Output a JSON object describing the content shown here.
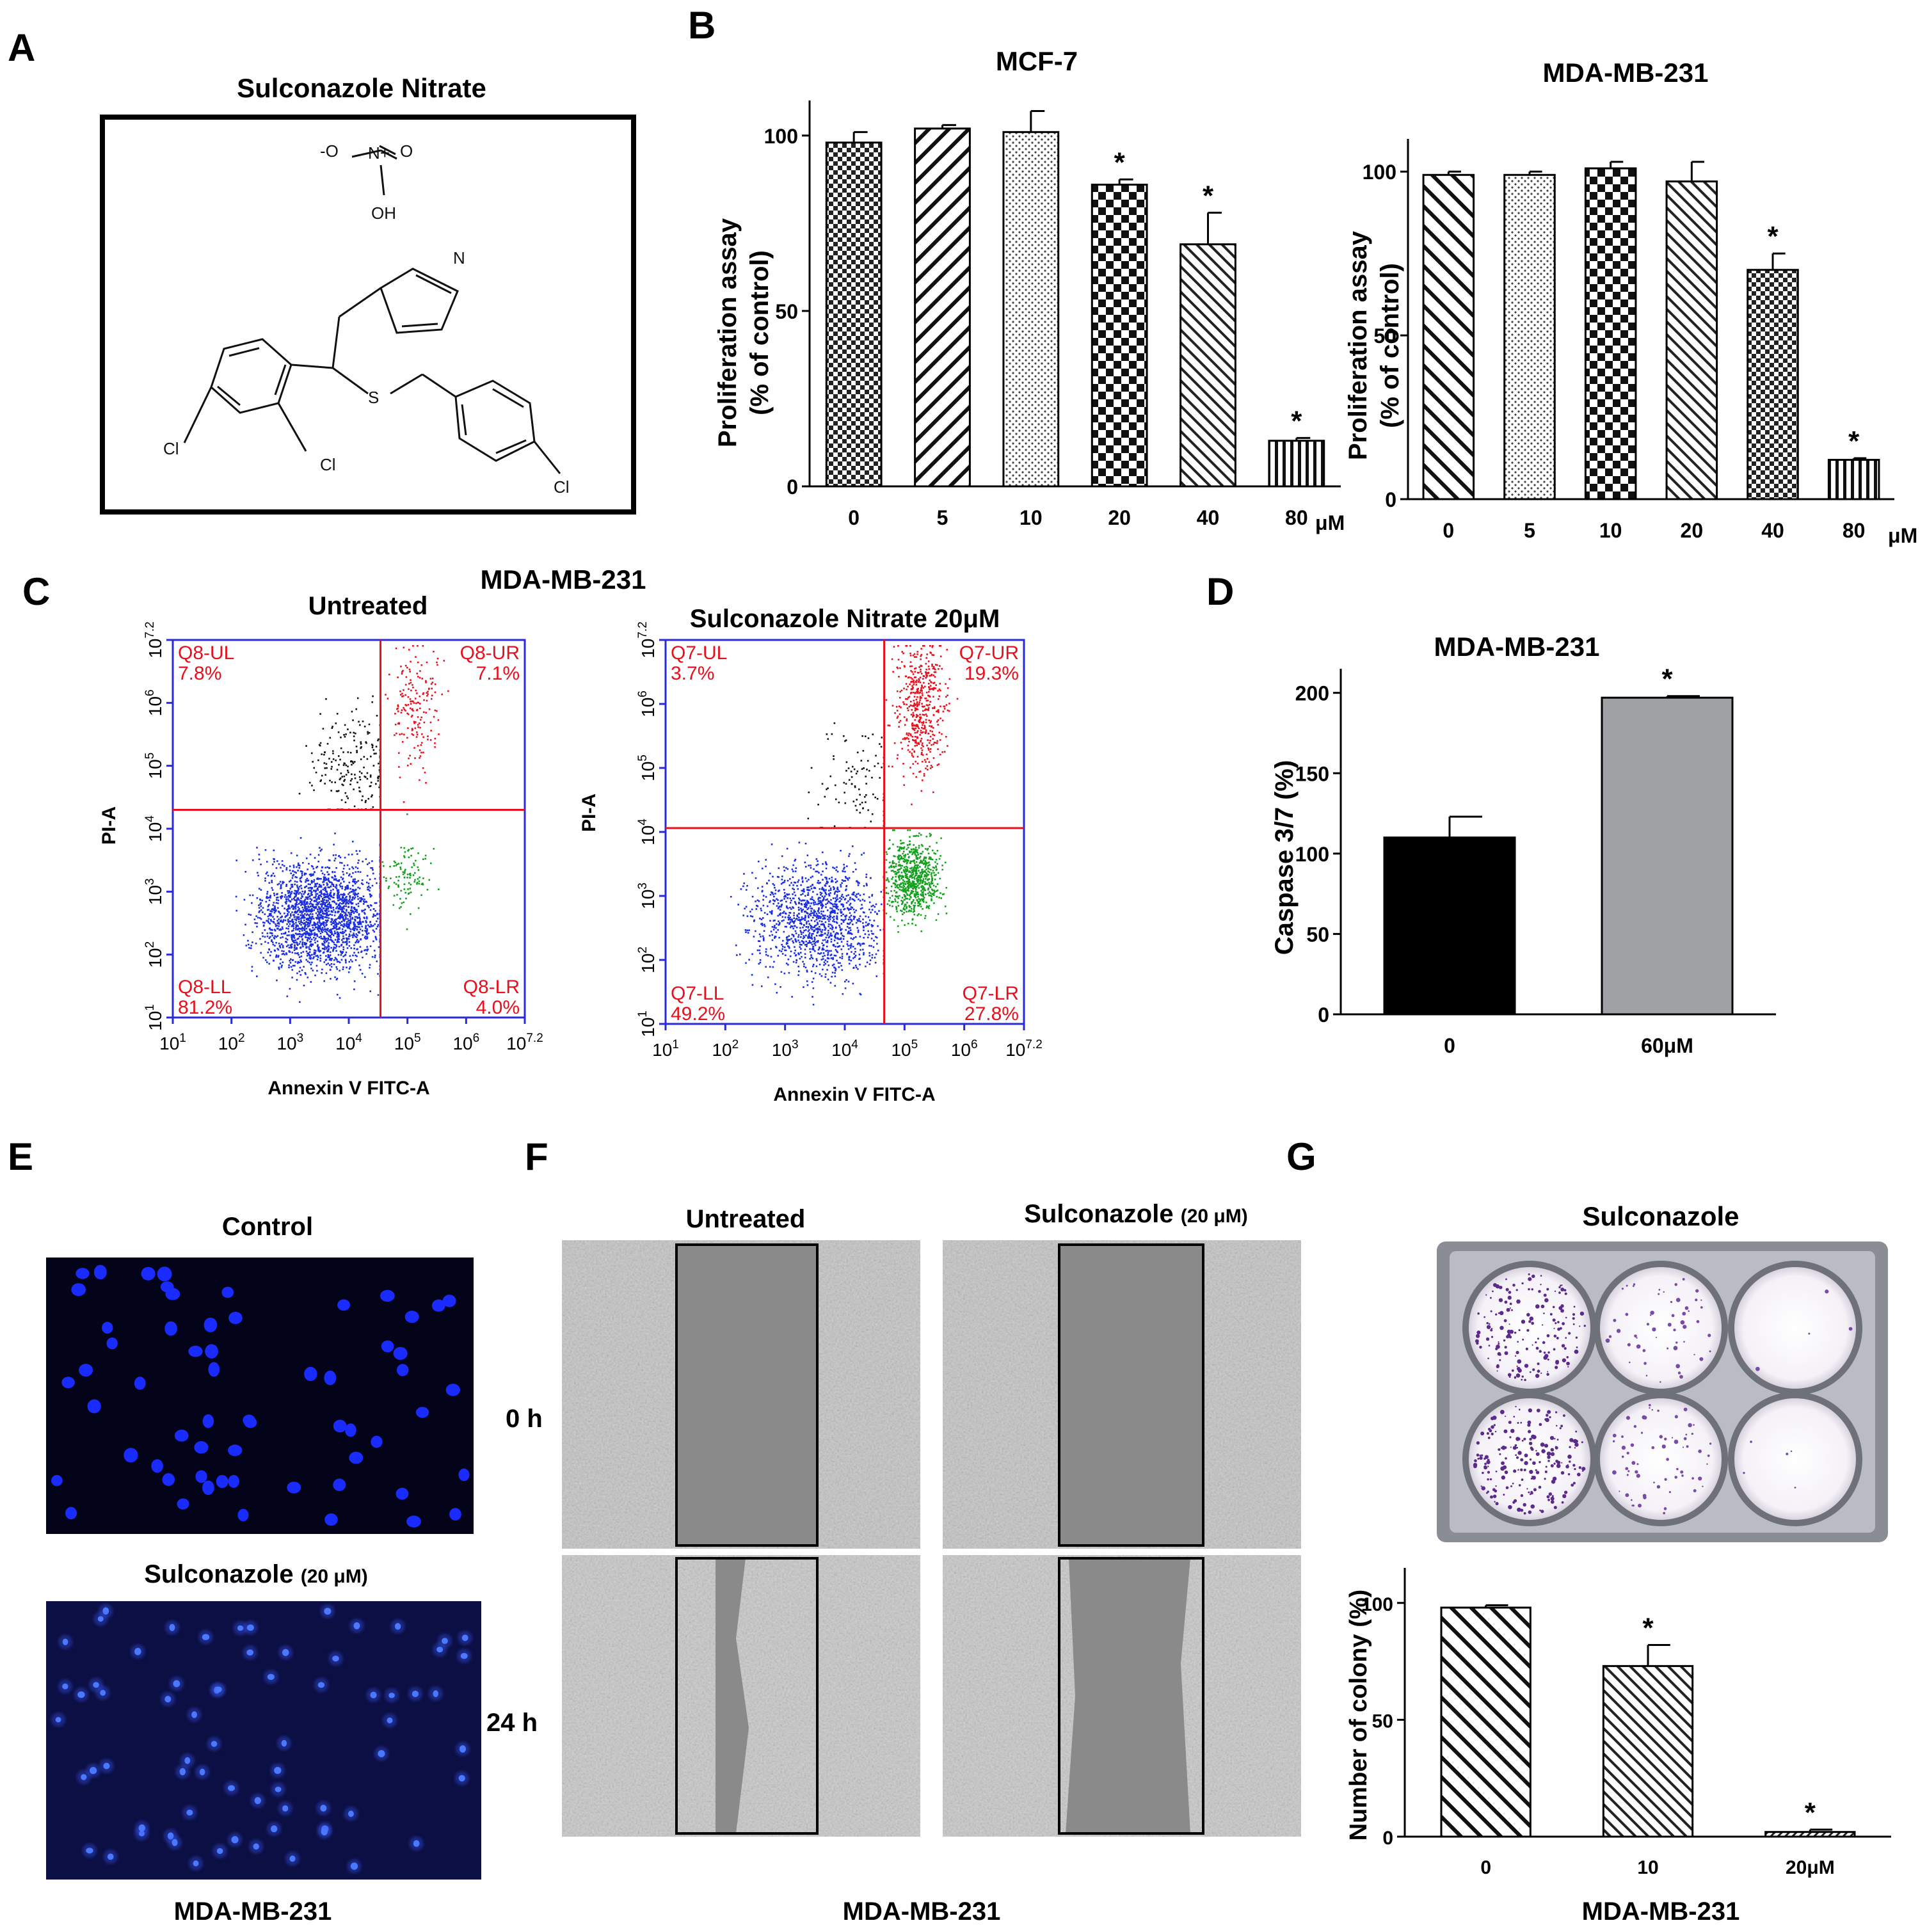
{
  "panel_labels": {
    "A": "A",
    "B": "B",
    "C": "C",
    "D": "D",
    "E": "E",
    "F": "F",
    "G": "G"
  },
  "panel_a": {
    "title": "Sulconazole Nitrate",
    "atoms": {
      "o_minus": "-O",
      "n_plus": "N+",
      "o": "O",
      "oh": "OH",
      "n": "N",
      "s": "S",
      "cl1": "Cl",
      "cl2": "Cl",
      "cl3": "Cl"
    }
  },
  "panel_b": {
    "unit": "μM"
  },
  "panel_c": {
    "cell_line": "MDA-MB-231",
    "x_ticks": [
      "10^1",
      "10^2",
      "10^3",
      "10^4",
      "10^5",
      "10^6",
      "10^7.2"
    ],
    "y_ticks": [
      "10^1",
      "10^2",
      "10^3",
      "10^4",
      "10^5",
      "10^6",
      "10^7.2"
    ],
    "untreated": {
      "title": "Untreated",
      "xlabel": "Annexin V FITC-A",
      "ylabel": "PI-A",
      "ul_name": "Q8-UL",
      "ul_value": "7.8%",
      "ur_name": "Q8-UR",
      "ur_value": "7.1%",
      "ll_name": "Q8-LL",
      "ll_value": "81.2%",
      "lr_name": "Q8-LR",
      "lr_value": "4.0%",
      "ul": 7.8,
      "ur": 7.1,
      "ll": 81.2,
      "lr": 4.0
    },
    "treated": {
      "title": "Sulconazole Nitrate 20μM",
      "xlabel": "Annexin V FITC-A",
      "ylabel": "PI-A",
      "ul_name": "Q7-UL",
      "ul_value": "3.7%",
      "ur_name": "Q7-UR",
      "ur_value": "19.3%",
      "ll_name": "Q7-LL",
      "ll_value": "49.2%",
      "lr_name": "Q7-LR",
      "lr_value": "27.8%",
      "ul": 3.7,
      "ur": 19.3,
      "ll": 49.2,
      "lr": 27.8
    },
    "colors": {
      "ul": "#111111",
      "ur": "#e8101c",
      "ll": "#1a2ee0",
      "lr": "#14a01e",
      "axis": "#2a2ad8",
      "gate": "#e8101c"
    }
  },
  "panel_e": {
    "control_label": "Control",
    "treated_label": "Sulconazole",
    "treated_dose": "(20 μM)",
    "cell_line": "MDA-MB-231"
  },
  "panel_f": {
    "untreated_label": "Untreated",
    "treated_label": "Sulconazole",
    "treated_dose": "(20 μM)",
    "time_0": "0 h",
    "time_24": "24 h",
    "cell_line": "MDA-MB-231"
  },
  "panel_g": {
    "title": "Sulconazole",
    "cell_line": "MDA-MB-231"
  },
  "chart_data": [
    {
      "id": "mcf7",
      "type": "bar",
      "title": "MCF-7",
      "xlabel": "",
      "ylabel": [
        "Proliferation assay",
        "(% of control)"
      ],
      "categories": [
        "0",
        "5",
        "10",
        "20",
        "40",
        "80"
      ],
      "unit": "μM",
      "values": [
        98,
        102,
        101,
        86,
        69,
        13
      ],
      "errors": [
        3,
        1,
        6,
        1.5,
        9,
        0.8
      ],
      "significant": [
        false,
        false,
        false,
        true,
        true,
        true
      ],
      "yticks": [
        0,
        50,
        100
      ],
      "ylim": [
        0,
        110
      ]
    },
    {
      "id": "mda_prolif",
      "type": "bar",
      "title": "MDA-MB-231",
      "xlabel": "",
      "ylabel": [
        "Proliferation assay",
        "(% of control)"
      ],
      "categories": [
        "0",
        "5",
        "10",
        "20",
        "40",
        "80"
      ],
      "unit": "μM",
      "values": [
        99,
        99,
        101,
        97,
        70,
        12
      ],
      "errors": [
        1,
        1,
        2,
        6,
        5,
        0.5
      ],
      "significant": [
        false,
        false,
        false,
        false,
        true,
        true
      ],
      "yticks": [
        0,
        50,
        100
      ],
      "ylim": [
        0,
        110
      ]
    },
    {
      "id": "caspase",
      "type": "bar",
      "title": "MDA-MB-231",
      "xlabel": "",
      "ylabel": [
        "Caspase 3/7 (%)"
      ],
      "categories": [
        "0",
        "60μM"
      ],
      "values": [
        110,
        197
      ],
      "errors": [
        13,
        1
      ],
      "significant": [
        false,
        true
      ],
      "colors": [
        "#000000",
        "#a0a1a5"
      ],
      "yticks": [
        0,
        50,
        100,
        150,
        200
      ],
      "ylim": [
        0,
        215
      ]
    },
    {
      "id": "colony",
      "type": "bar",
      "title": "",
      "xlabel": "MDA-MB-231",
      "ylabel": [
        "Number of colony (%)"
      ],
      "categories": [
        "0",
        "10",
        "20μM"
      ],
      "values": [
        98,
        73,
        2
      ],
      "errors": [
        1,
        9,
        1
      ],
      "significant": [
        false,
        true,
        true
      ],
      "yticks": [
        0,
        50,
        100
      ],
      "ylim": [
        0,
        115
      ]
    }
  ],
  "significance_marker": "*"
}
